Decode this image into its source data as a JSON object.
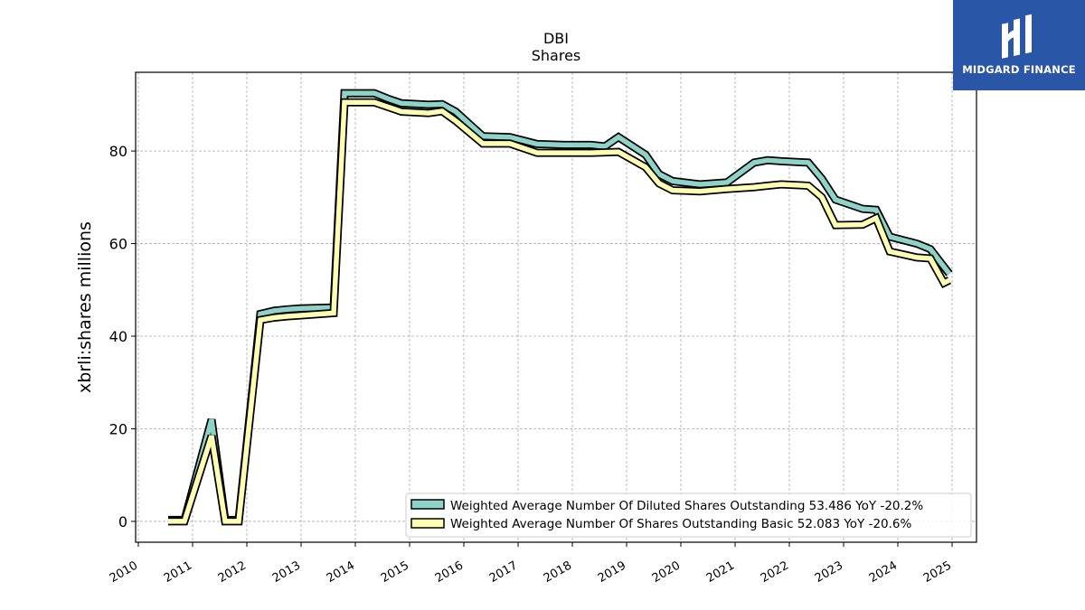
{
  "chart_data": {
    "type": "line",
    "title": "DBI",
    "subtitle": "Shares",
    "ylabel": "xbrli:shares millions",
    "xlabel": "",
    "xlim": [
      2009.95,
      2025.45
    ],
    "ylim": [
      -4.5,
      97
    ],
    "yticks": [
      0,
      20,
      40,
      60,
      80
    ],
    "xticks": [
      2010,
      2011,
      2012,
      2013,
      2014,
      2015,
      2016,
      2017,
      2018,
      2019,
      2020,
      2021,
      2022,
      2023,
      2024,
      2025
    ],
    "xtick_labels": [
      "2010",
      "2011",
      "2012",
      "2013",
      "2014",
      "2015",
      "2016",
      "2017",
      "2018",
      "2019",
      "2020",
      "2021",
      "2022",
      "2023",
      "2024",
      "2025"
    ],
    "ytick_labels": [
      "0",
      "20",
      "40",
      "60",
      "80"
    ],
    "grid": true,
    "legend_position": "bottom-right",
    "series": [
      {
        "name": "Weighted Average Number Of Diluted Shares Outstanding",
        "legend_label": "Weighted Average Number Of Diluted Shares Outstanding  53.486 YoY -20.2%",
        "color": "#8dd3c7",
        "x": [
          2010.55,
          2010.85,
          2011.35,
          2011.6,
          2011.85,
          2012.25,
          2012.5,
          2012.75,
          2013.0,
          2013.6,
          2013.8,
          2014.35,
          2014.6,
          2014.85,
          2015.35,
          2015.6,
          2015.85,
          2016.35,
          2016.85,
          2017.35,
          2017.85,
          2018.35,
          2018.6,
          2018.85,
          2019.35,
          2019.6,
          2019.85,
          2020.35,
          2020.85,
          2021.35,
          2021.6,
          2021.85,
          2022.35,
          2022.6,
          2022.85,
          2023.35,
          2023.6,
          2023.85,
          2024.35,
          2024.6,
          2024.85,
          2024.95
        ],
        "y": [
          0.3,
          0.3,
          22.0,
          0.3,
          0.3,
          44.8,
          45.5,
          45.8,
          46.0,
          46.2,
          92.5,
          92.5,
          91.3,
          90.3,
          90.0,
          90.1,
          88.5,
          83.2,
          83.0,
          81.5,
          81.3,
          81.3,
          81.0,
          83.0,
          79.2,
          75.0,
          73.5,
          72.8,
          73.2,
          77.5,
          78.0,
          77.8,
          77.5,
          74.0,
          69.5,
          67.5,
          67.3,
          61.5,
          60.0,
          58.8,
          55.0,
          53.486
        ]
      },
      {
        "name": "Weighted Average Number Of Shares Outstanding Basic",
        "legend_label": "Weighted Average Number Of Shares Outstanding Basic  52.083 YoY -20.6%",
        "color": "#ffffb3",
        "x": [
          2010.55,
          2010.85,
          2011.35,
          2011.6,
          2011.85,
          2012.25,
          2012.5,
          2012.75,
          2013.0,
          2013.6,
          2013.8,
          2014.35,
          2014.6,
          2014.85,
          2015.35,
          2015.6,
          2015.85,
          2016.35,
          2016.85,
          2017.35,
          2017.85,
          2018.35,
          2018.6,
          2018.85,
          2019.35,
          2019.6,
          2019.85,
          2020.35,
          2020.85,
          2021.35,
          2021.6,
          2021.85,
          2022.35,
          2022.6,
          2022.85,
          2023.35,
          2023.6,
          2023.85,
          2024.35,
          2024.6,
          2024.85,
          2024.95
        ],
        "y": [
          0.0,
          0.0,
          18.5,
          0.0,
          0.0,
          43.5,
          44.0,
          44.3,
          44.5,
          45.0,
          90.5,
          90.5,
          89.5,
          88.5,
          88.2,
          88.6,
          86.5,
          81.6,
          81.6,
          79.6,
          79.6,
          79.6,
          79.7,
          79.8,
          76.5,
          73.0,
          71.5,
          71.3,
          71.8,
          72.2,
          72.5,
          72.8,
          72.5,
          70.0,
          64.0,
          64.1,
          65.5,
          58.3,
          57.0,
          56.8,
          51.5,
          52.083
        ]
      }
    ]
  },
  "logo": {
    "text": "MIDGARD FINANCE",
    "background": "#2a56a8"
  }
}
